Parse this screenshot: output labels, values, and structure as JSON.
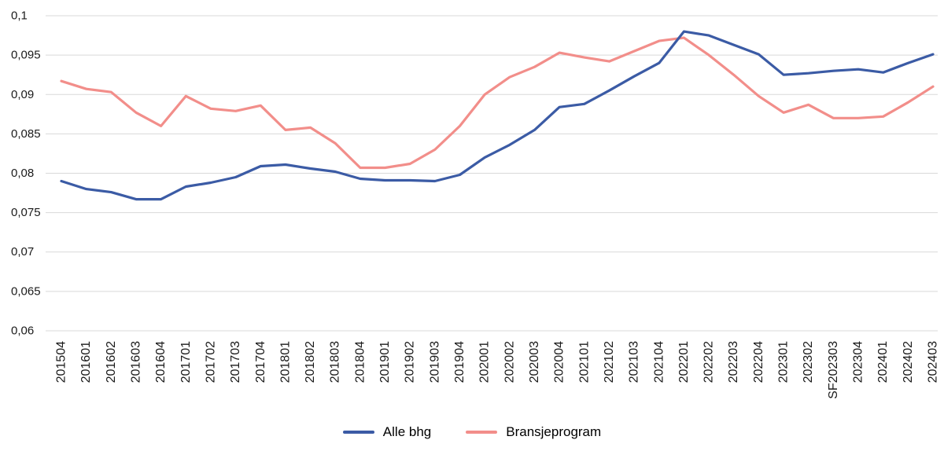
{
  "chart_data": {
    "type": "line",
    "categories": [
      "201504",
      "201601",
      "201602",
      "201603",
      "201604",
      "201701",
      "201702",
      "201703",
      "201704",
      "201801",
      "201802",
      "201803",
      "201804",
      "201901",
      "201902",
      "201903",
      "201904",
      "202001",
      "202002",
      "202003",
      "202004",
      "202101",
      "202102",
      "202103",
      "202104",
      "202201",
      "202202",
      "202203",
      "202204",
      "202301",
      "202302",
      "SF202303",
      "202304",
      "202401",
      "202402",
      "202403"
    ],
    "series": [
      {
        "name": "Alle bhg",
        "color": "#3B5BA5",
        "values": [
          0.079,
          0.078,
          0.0776,
          0.0767,
          0.0767,
          0.0783,
          0.0788,
          0.0795,
          0.0809,
          0.0811,
          0.0806,
          0.0802,
          0.0793,
          0.0791,
          0.0791,
          0.079,
          0.0798,
          0.082,
          0.0836,
          0.0855,
          0.0884,
          0.0888,
          0.0905,
          0.0923,
          0.094,
          0.098,
          0.0975,
          0.0963,
          0.0951,
          0.0925,
          0.0927,
          0.093,
          0.0932,
          0.0928,
          0.094,
          0.0951
        ]
      },
      {
        "name": "Bransjeprogram",
        "color": "#F28E8A",
        "values": [
          0.0917,
          0.0907,
          0.0903,
          0.0877,
          0.086,
          0.0898,
          0.0882,
          0.0879,
          0.0886,
          0.0855,
          0.0858,
          0.0838,
          0.0807,
          0.0807,
          0.0812,
          0.083,
          0.086,
          0.09,
          0.0922,
          0.0935,
          0.0953,
          0.0947,
          0.0942,
          0.0955,
          0.0968,
          0.0972,
          0.095,
          0.0925,
          0.0898,
          0.0877,
          0.0887,
          0.087,
          0.087,
          0.0872,
          0.089,
          0.091
        ]
      }
    ],
    "ylim": [
      0.06,
      0.1
    ],
    "ytick_values": [
      0.06,
      0.065,
      0.07,
      0.075,
      0.08,
      0.085,
      0.09,
      0.095,
      0.1
    ],
    "ytick_labels": [
      "0,06",
      "0,065",
      "0,07",
      "0,075",
      "0,08",
      "0,085",
      "0,09",
      "0,095",
      "0,1"
    ],
    "grid": "horizontal",
    "grid_color": "#d9d9d9",
    "text_color": "#1a1a1a",
    "legend_position": "bottom"
  }
}
